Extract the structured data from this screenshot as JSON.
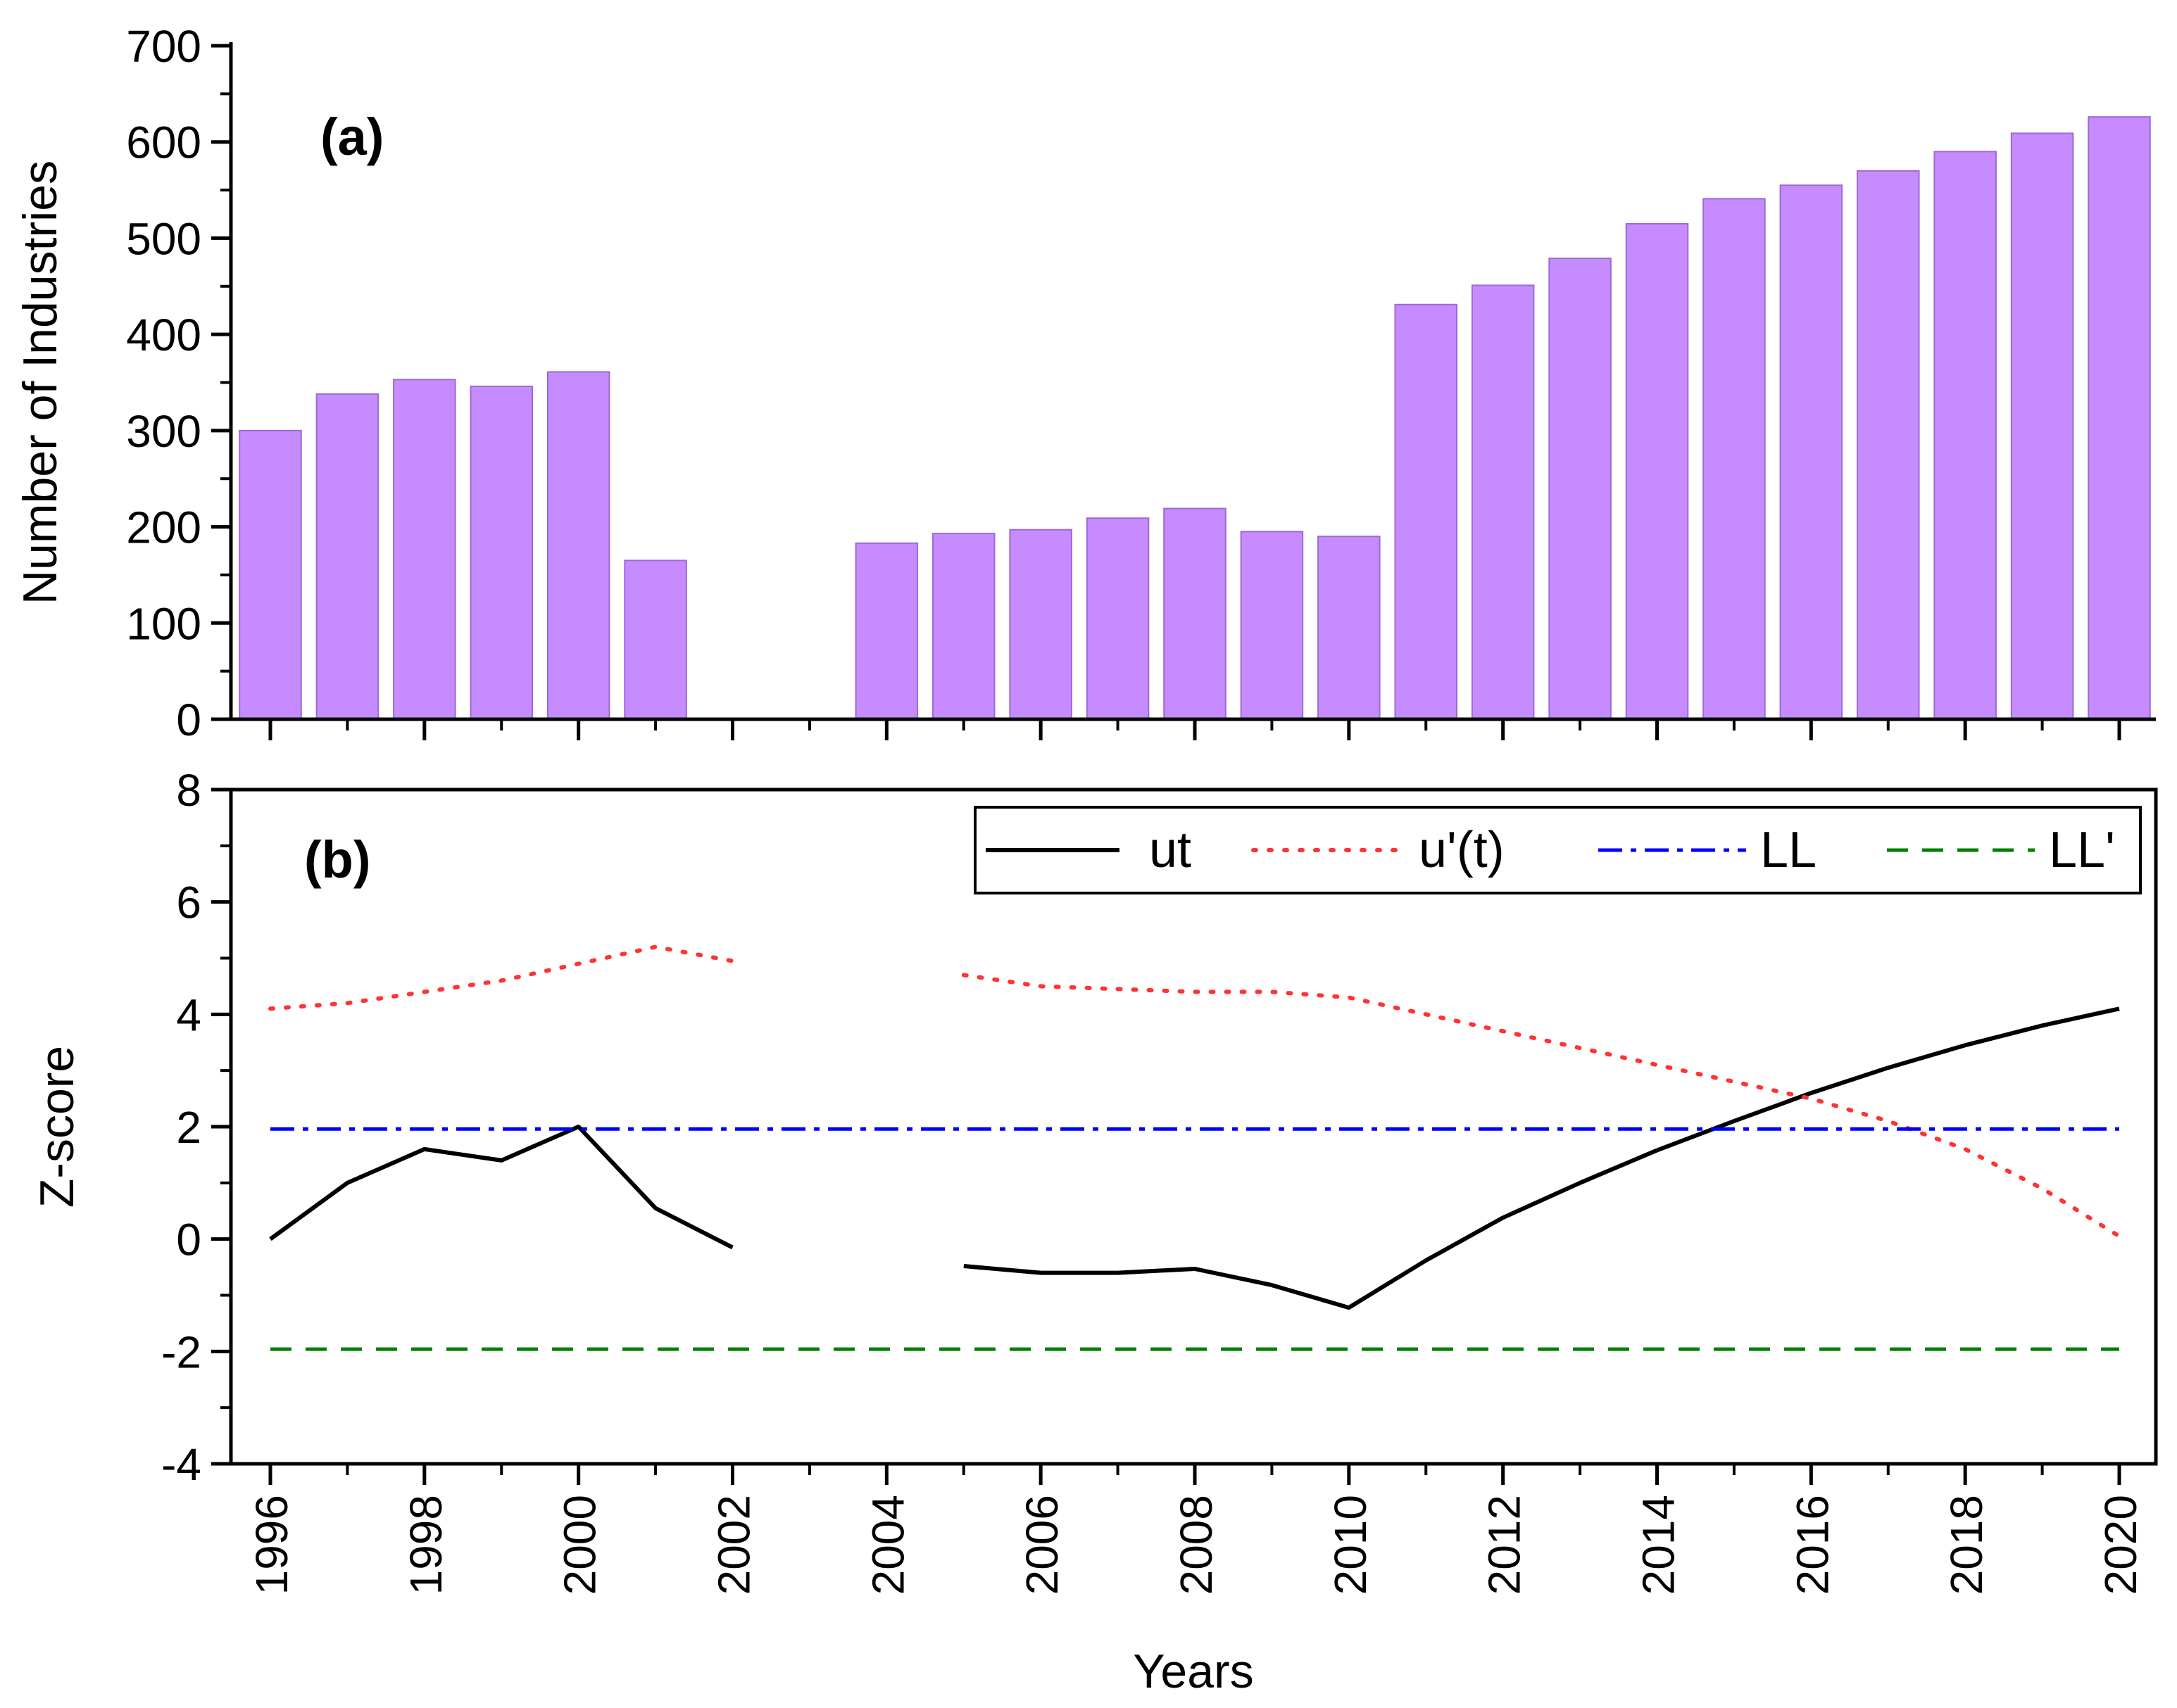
{
  "chart_data": [
    {
      "type": "bar",
      "panel_label": "(a)",
      "title": "",
      "xlabel": "",
      "ylabel": "Number of Industries",
      "ylim": [
        0,
        700
      ],
      "yticks": [
        0,
        100,
        200,
        300,
        400,
        500,
        600,
        700
      ],
      "bar_color": "#c68cff",
      "categories": [
        1996,
        1997,
        1998,
        1999,
        2000,
        2001,
        2002,
        2003,
        2004,
        2005,
        2006,
        2007,
        2008,
        2009,
        2010,
        2011,
        2012,
        2013,
        2014,
        2015,
        2016,
        2017,
        2018,
        2019,
        2020
      ],
      "values": [
        300,
        338,
        353,
        346,
        361,
        165,
        null,
        null,
        183,
        193,
        197,
        209,
        219,
        195,
        190,
        431,
        451,
        479,
        515,
        541,
        555,
        570,
        590,
        609,
        626
      ]
    },
    {
      "type": "line",
      "panel_label": "(b)",
      "title": "",
      "xlabel": "Years",
      "ylabel": "Z-score",
      "xlim": [
        1995.5,
        2020.5
      ],
      "ylim": [
        -4,
        8
      ],
      "yticks": [
        -4,
        -2,
        0,
        2,
        4,
        6,
        8
      ],
      "xticks": [
        1996,
        1998,
        2000,
        2002,
        2004,
        2006,
        2008,
        2010,
        2012,
        2014,
        2016,
        2018,
        2020
      ],
      "legend_position": "top-right",
      "x": [
        1996,
        1997,
        1998,
        1999,
        2000,
        2001,
        2002,
        2003,
        2004,
        2005,
        2006,
        2007,
        2008,
        2009,
        2010,
        2011,
        2012,
        2013,
        2014,
        2015,
        2016,
        2017,
        2018,
        2019,
        2020
      ],
      "series": [
        {
          "name": "ut",
          "color": "#000000",
          "style": "solid",
          "values": [
            0,
            1.0,
            1.6,
            1.4,
            2.0,
            0.55,
            -0.15,
            null,
            null,
            -0.48,
            -0.6,
            -0.6,
            -0.53,
            -0.82,
            -1.22,
            -0.38,
            0.38,
            1.0,
            1.58,
            2.1,
            2.6,
            3.05,
            3.45,
            3.8,
            4.1
          ]
        },
        {
          "name": "u'(t)",
          "color": "#ff3333",
          "style": "dotted",
          "values": [
            4.1,
            4.2,
            4.4,
            4.6,
            4.9,
            5.2,
            4.95,
            null,
            null,
            4.7,
            4.5,
            4.45,
            4.4,
            4.4,
            4.3,
            4.0,
            3.7,
            3.4,
            3.1,
            2.8,
            2.5,
            2.1,
            1.6,
            0.9,
            0.05
          ]
        },
        {
          "name": "LL",
          "color": "#0000ff",
          "style": "dashdot",
          "values": [
            1.96,
            1.96,
            1.96,
            1.96,
            1.96,
            1.96,
            1.96,
            1.96,
            1.96,
            1.96,
            1.96,
            1.96,
            1.96,
            1.96,
            1.96,
            1.96,
            1.96,
            1.96,
            1.96,
            1.96,
            1.96,
            1.96,
            1.96,
            1.96,
            1.96
          ]
        },
        {
          "name": "LL'",
          "color": "#008000",
          "style": "dashed",
          "values": [
            -1.96,
            -1.96,
            -1.96,
            -1.96,
            -1.96,
            -1.96,
            -1.96,
            -1.96,
            -1.96,
            -1.96,
            -1.96,
            -1.96,
            -1.96,
            -1.96,
            -1.96,
            -1.96,
            -1.96,
            -1.96,
            -1.96,
            -1.96,
            -1.96,
            -1.96,
            -1.96,
            -1.96,
            -1.96
          ]
        }
      ]
    }
  ]
}
